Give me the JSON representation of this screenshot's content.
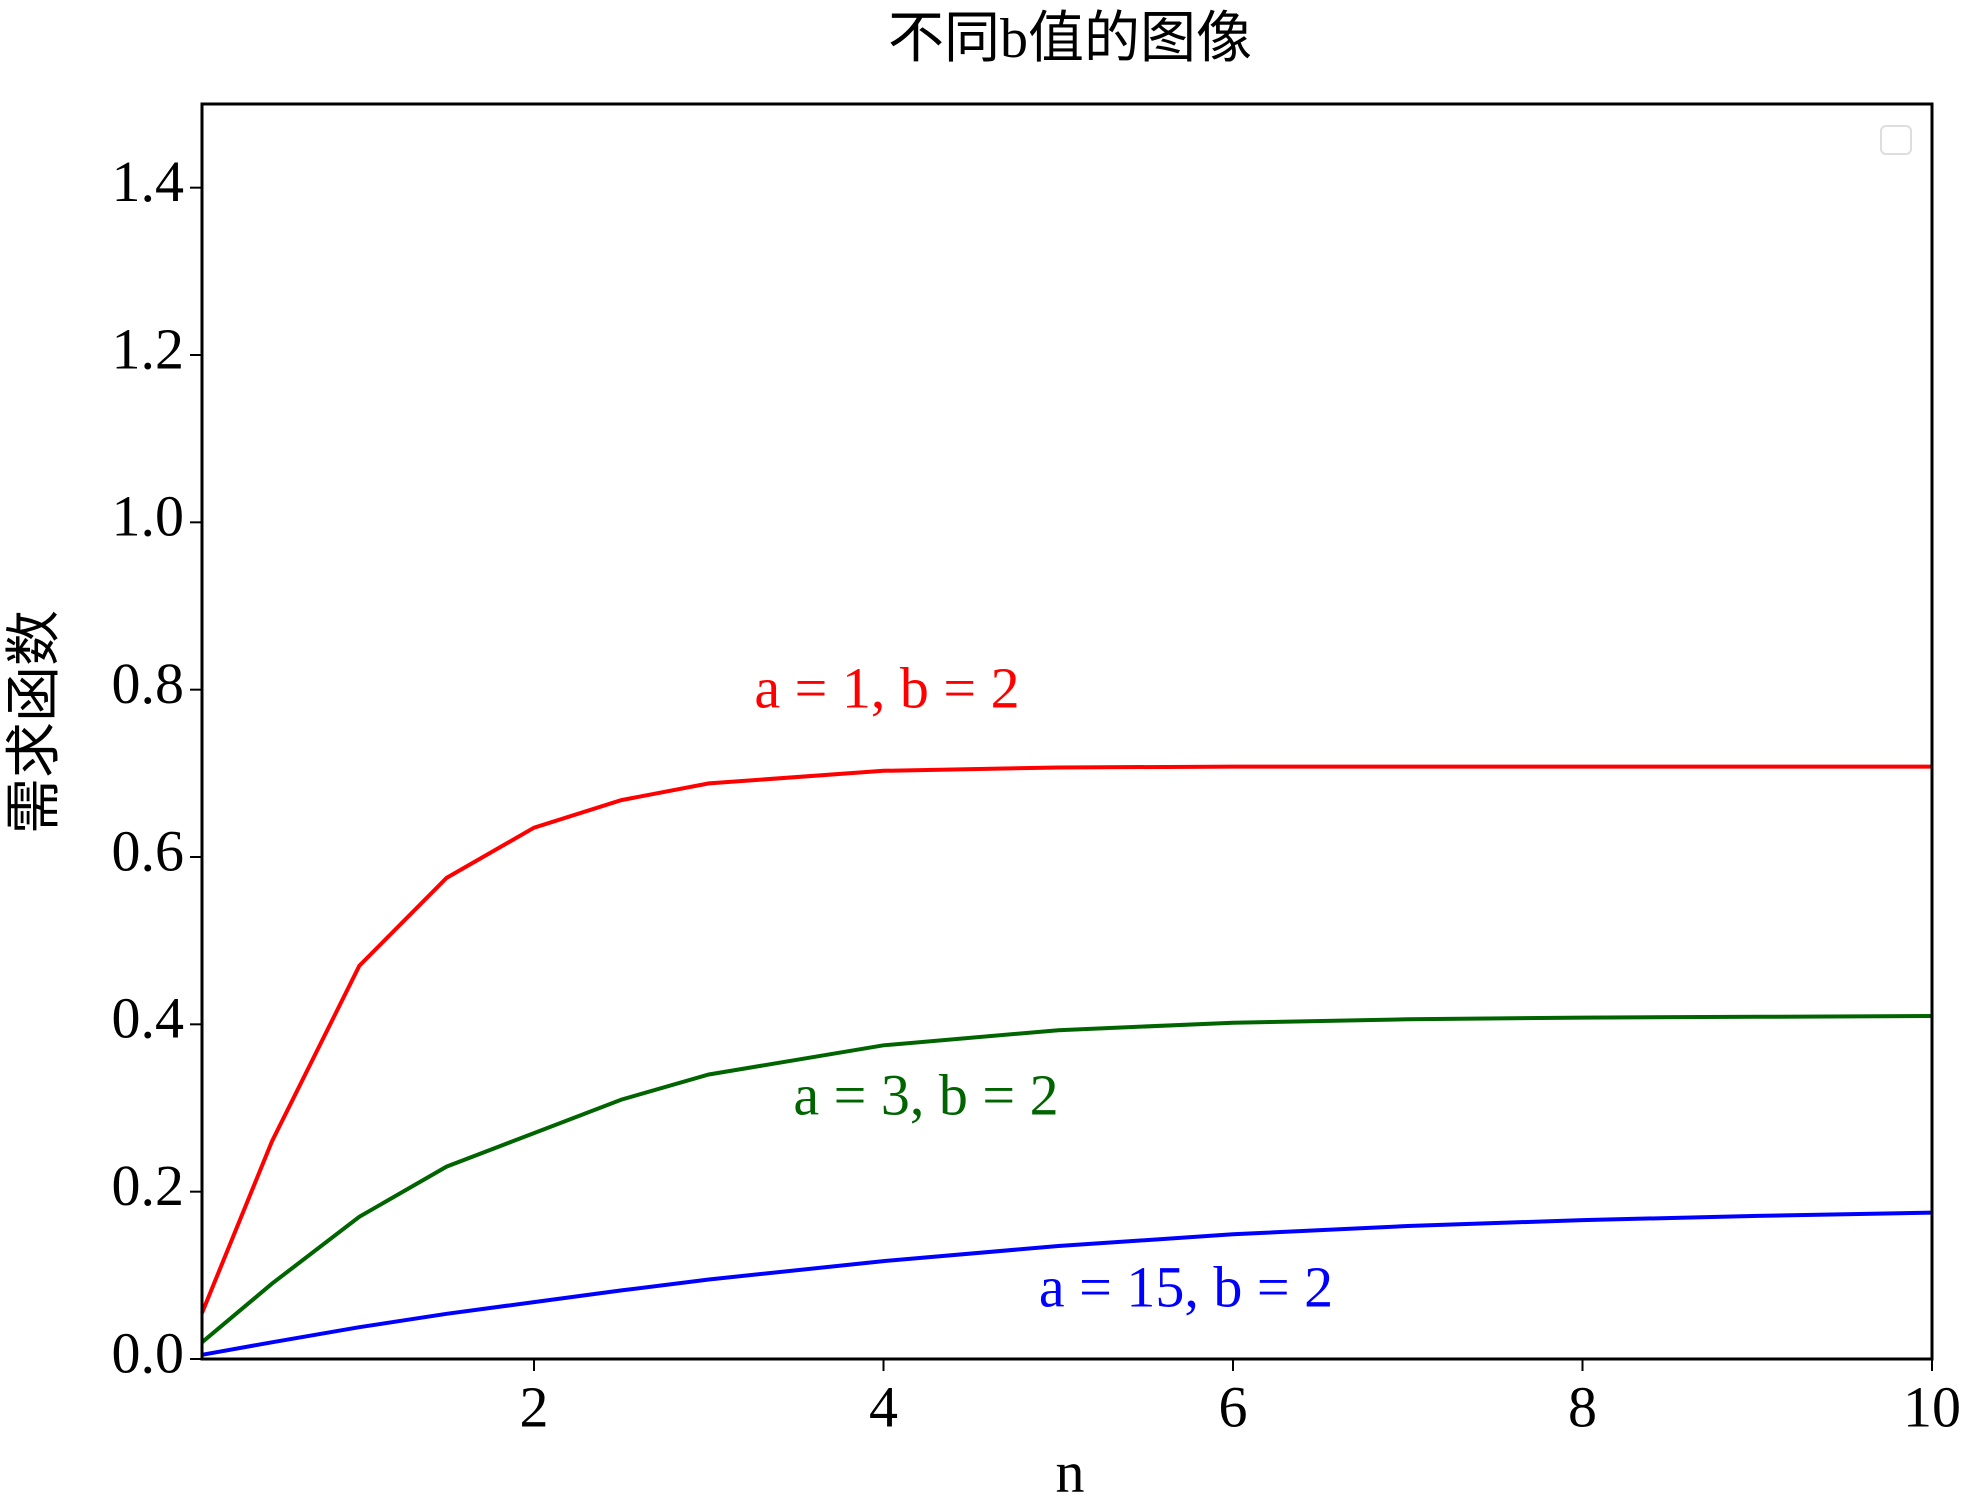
{
  "chart_data": {
    "type": "line",
    "title": "不同b值的图像",
    "x_label": "n",
    "y_label": "需求函数",
    "x": [
      0.1,
      0.5,
      1,
      1.5,
      2,
      2.5,
      3,
      4,
      5,
      6,
      7,
      8,
      9,
      10
    ],
    "series": [
      {
        "name": "a = 1, b = 2",
        "color": "#ff0000",
        "values": [
          0.055,
          0.26,
          0.47,
          0.575,
          0.635,
          0.668,
          0.688,
          0.703,
          0.707,
          0.708,
          0.708,
          0.708,
          0.708,
          0.708
        ]
      },
      {
        "name": "a = 3, b = 2",
        "color": "#006400",
        "values": [
          0.02,
          0.09,
          0.17,
          0.23,
          0.27,
          0.31,
          0.34,
          0.375,
          0.393,
          0.402,
          0.406,
          0.408,
          0.409,
          0.41
        ]
      },
      {
        "name": "a = 15, b = 2",
        "color": "#0000ff",
        "values": [
          0.005,
          0.02,
          0.038,
          0.054,
          0.068,
          0.082,
          0.095,
          0.117,
          0.135,
          0.149,
          0.159,
          0.166,
          0.171,
          0.175
        ]
      }
    ],
    "xlim": [
      0.1,
      10
    ],
    "ylim": [
      0,
      1.5
    ],
    "xticks": [
      2,
      4,
      6,
      8,
      10
    ],
    "yticks": [
      {
        "value": 0,
        "label": "0.0"
      },
      0.2,
      0.4,
      0.6,
      0.8,
      {
        "value": 1,
        "label": "1.0"
      },
      1.2,
      1.4
    ]
  }
}
